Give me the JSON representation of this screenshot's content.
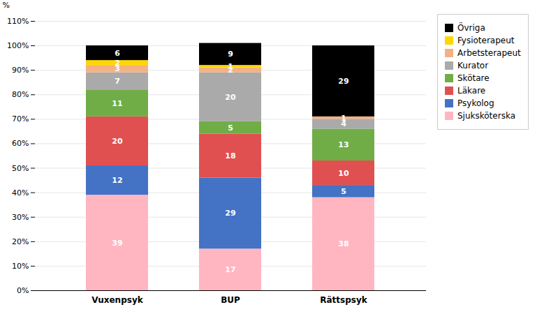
{
  "chart_data": {
    "type": "bar",
    "stacked": true,
    "categories": [
      "Vuxenpsyk",
      "BUP",
      "Rättspsyk"
    ],
    "series": [
      {
        "name": "Sjuksköterska",
        "values": [
          39,
          17,
          38
        ],
        "color": "#FFB6C1"
      },
      {
        "name": "Psykolog",
        "values": [
          12,
          29,
          5
        ],
        "color": "#4472C4"
      },
      {
        "name": "Läkare",
        "values": [
          20,
          18,
          10
        ],
        "color": "#E05050"
      },
      {
        "name": "Skötare",
        "values": [
          11,
          5,
          13
        ],
        "color": "#70AD47"
      },
      {
        "name": "Kurator",
        "values": [
          7,
          20,
          4
        ],
        "color": "#AAAAAA"
      },
      {
        "name": "Arbetsterapeut",
        "values": [
          3,
          2,
          1
        ],
        "color": "#F4B183"
      },
      {
        "name": "Fysioterapeut",
        "values": [
          2,
          1,
          0
        ],
        "color": "#FFD700"
      },
      {
        "name": "Övriga",
        "values": [
          6,
          9,
          29
        ],
        "color": "#000000"
      }
    ],
    "ylabel": "%",
    "ylim": [
      0,
      110
    ],
    "yticks": [
      {
        "value": 0,
        "label": "0%"
      },
      {
        "value": 10,
        "label": "10%"
      },
      {
        "value": 20,
        "label": "20%"
      },
      {
        "value": 30,
        "label": "30%"
      },
      {
        "value": 40,
        "label": "40%"
      },
      {
        "value": 50,
        "label": "50%"
      },
      {
        "value": 60,
        "label": "60%"
      },
      {
        "value": 70,
        "label": "70%"
      },
      {
        "value": 80,
        "label": "80%"
      },
      {
        "value": 90,
        "label": "90%"
      },
      {
        "value": 100,
        "label": "100%"
      },
      {
        "value": 110,
        "label": "110%"
      }
    ],
    "grid": true,
    "data_labels": true,
    "legend": "upper right"
  }
}
